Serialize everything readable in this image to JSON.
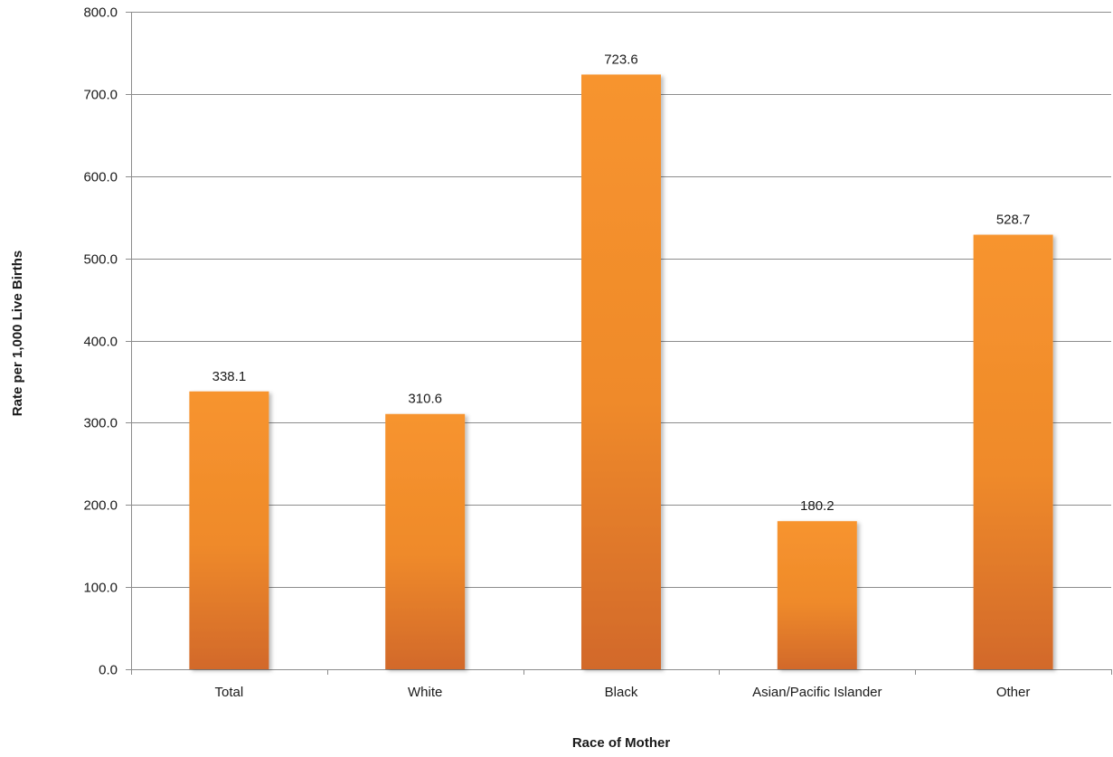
{
  "chart_data": {
    "type": "bar",
    "title": "",
    "xlabel": "Race of Mother",
    "ylabel": "Rate per 1,000 Live Births",
    "categories": [
      "Total",
      "White",
      "Black",
      "Asian/Pacific Islander",
      "Other"
    ],
    "values": [
      338.1,
      310.6,
      723.6,
      180.2,
      528.7
    ],
    "value_labels": [
      "338.1",
      "310.6",
      "723.6",
      "180.2",
      "528.7"
    ],
    "ylim": [
      0,
      800
    ],
    "yticks": [
      0,
      100,
      200,
      300,
      400,
      500,
      600,
      700,
      800
    ],
    "ytick_labels": [
      "0.0",
      "100.0",
      "200.0",
      "300.0",
      "400.0",
      "500.0",
      "600.0",
      "700.0",
      "800.0"
    ],
    "grid": true,
    "legend": "none",
    "bar_color_top": "#f7942f",
    "bar_color_bottom": "#d2692a",
    "grid_color": "#8c8c8c"
  }
}
